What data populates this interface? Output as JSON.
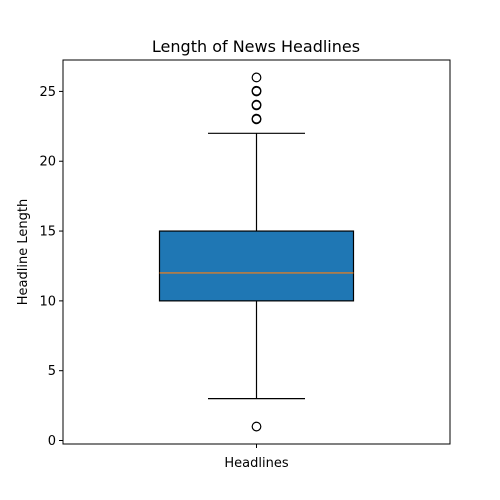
{
  "chart_data": {
    "type": "boxplot",
    "title": "Length of News Headlines",
    "xlabel": "",
    "ylabel": "Headline Length",
    "categories": [
      "Headlines"
    ],
    "ylim": [
      -0.25,
      27.25
    ],
    "yticks": [
      0,
      5,
      10,
      15,
      20,
      25
    ],
    "grid": false,
    "box": {
      "whisker_low": 3,
      "q1": 10,
      "median": 12,
      "q3": 15,
      "whisker_high": 22
    },
    "outliers": [
      1,
      23,
      23.05,
      24,
      24.05,
      25,
      25.05,
      26
    ],
    "colors": {
      "box_fill": "#1f77b4",
      "median": "#ff7f0e",
      "lines": "#000000"
    }
  }
}
